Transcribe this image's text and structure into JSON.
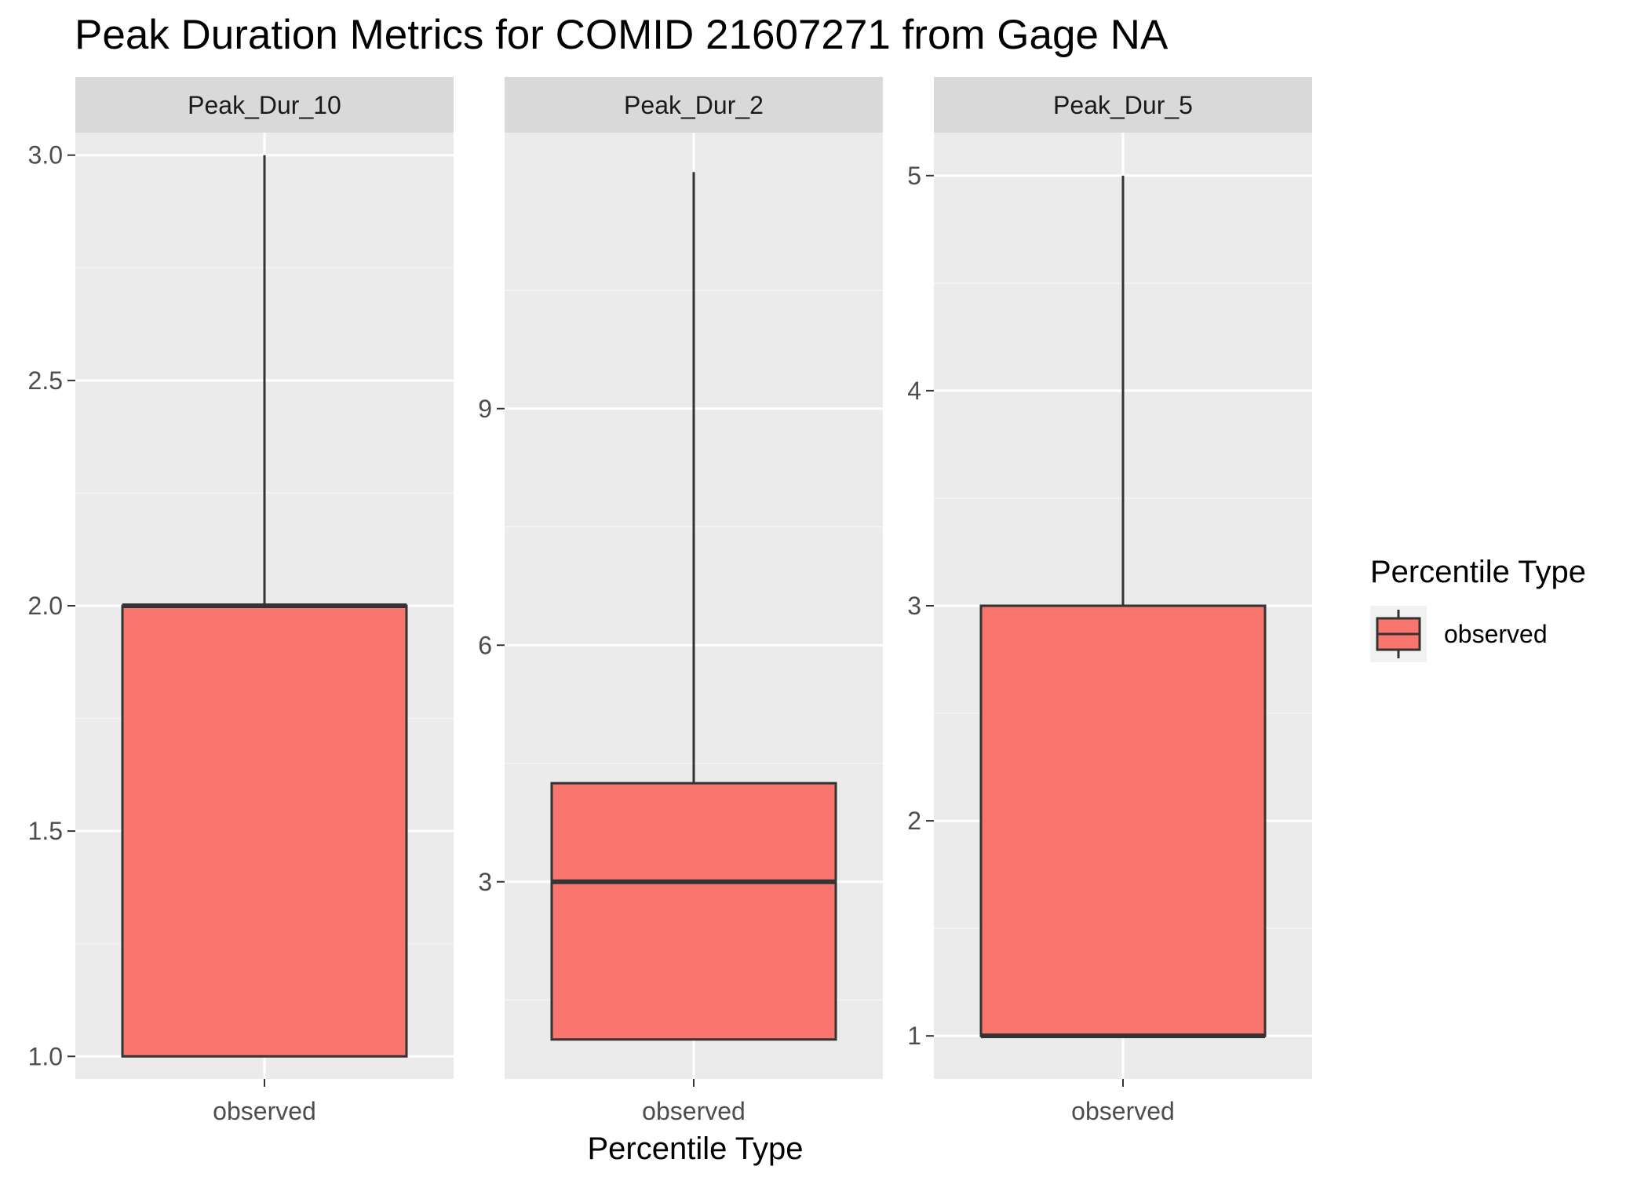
{
  "chart_data": {
    "type": "boxplot",
    "title": "Peak Duration Metrics for COMID 21607271 from Gage NA",
    "xlabel": "Percentile Type",
    "ylabel": "",
    "grid": true,
    "legend": {
      "title": "Percentile Type",
      "position": "right",
      "entries": [
        {
          "label": "observed",
          "color": "#F8766D"
        }
      ]
    },
    "facets": [
      {
        "label": "Peak_Dur_10",
        "category": "observed",
        "ylim": [
          0.95,
          3.05
        ],
        "yticks": [
          1.0,
          1.5,
          2.0,
          2.5,
          3.0
        ],
        "ytick_labels": [
          "1.0",
          "1.5",
          "2.0",
          "2.5",
          "3.0"
        ],
        "box": {
          "whisker_low": 1,
          "q1": 1,
          "median": 2,
          "q3": 2,
          "whisker_high": 3
        }
      },
      {
        "label": "Peak_Dur_2",
        "category": "observed",
        "ylim": [
          0.5,
          12.5
        ],
        "yticks": [
          3,
          6,
          9
        ],
        "ytick_labels": [
          "3",
          "6",
          "9"
        ],
        "box": {
          "whisker_low": 1,
          "q1": 1,
          "median": 3,
          "q3": 4.25,
          "whisker_high": 12
        }
      },
      {
        "label": "Peak_Dur_5",
        "category": "observed",
        "ylim": [
          0.8,
          5.2
        ],
        "yticks": [
          1,
          2,
          3,
          4,
          5
        ],
        "ytick_labels": [
          "1",
          "2",
          "3",
          "4",
          "5"
        ],
        "box": {
          "whisker_low": 1,
          "q1": 1,
          "median": 1,
          "q3": 3,
          "whisker_high": 5
        }
      }
    ]
  },
  "colors": {
    "panel_background": "#EBEBEB",
    "strip_background": "#D9D9D9",
    "grid_major": "#FFFFFF",
    "grid_minor": "#F5F5F5",
    "box_fill": "#F8766D",
    "box_line": "#333333",
    "tick_text": "#4D4D4D"
  }
}
